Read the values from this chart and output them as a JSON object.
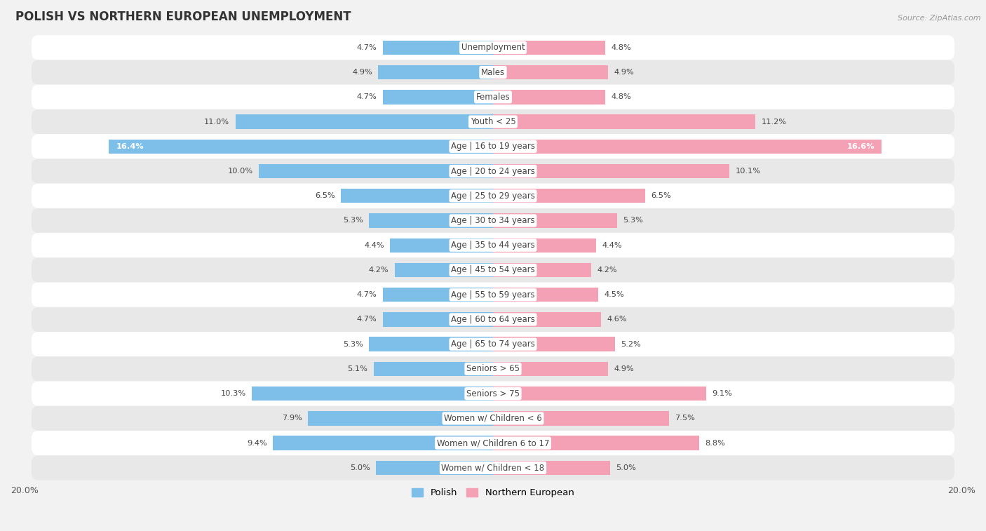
{
  "title": "POLISH VS NORTHERN EUROPEAN UNEMPLOYMENT",
  "source": "Source: ZipAtlas.com",
  "categories": [
    "Unemployment",
    "Males",
    "Females",
    "Youth < 25",
    "Age | 16 to 19 years",
    "Age | 20 to 24 years",
    "Age | 25 to 29 years",
    "Age | 30 to 34 years",
    "Age | 35 to 44 years",
    "Age | 45 to 54 years",
    "Age | 55 to 59 years",
    "Age | 60 to 64 years",
    "Age | 65 to 74 years",
    "Seniors > 65",
    "Seniors > 75",
    "Women w/ Children < 6",
    "Women w/ Children 6 to 17",
    "Women w/ Children < 18"
  ],
  "polish_values": [
    4.7,
    4.9,
    4.7,
    11.0,
    16.4,
    10.0,
    6.5,
    5.3,
    4.4,
    4.2,
    4.7,
    4.7,
    5.3,
    5.1,
    10.3,
    7.9,
    9.4,
    5.0
  ],
  "northern_european_values": [
    4.8,
    4.9,
    4.8,
    11.2,
    16.6,
    10.1,
    6.5,
    5.3,
    4.4,
    4.2,
    4.5,
    4.6,
    5.2,
    4.9,
    9.1,
    7.5,
    8.8,
    5.0
  ],
  "polish_color": "#7dbfe8",
  "northern_european_color": "#f4a0b5",
  "bar_height": 0.58,
  "max_val": 20.0,
  "background_color": "#f2f2f2",
  "row_color_light": "#ffffff",
  "row_color_dark": "#e8e8e8",
  "axis_tick_label": "20.0%",
  "legend_labels": [
    "Polish",
    "Northern European"
  ],
  "label_threshold": 12.0
}
